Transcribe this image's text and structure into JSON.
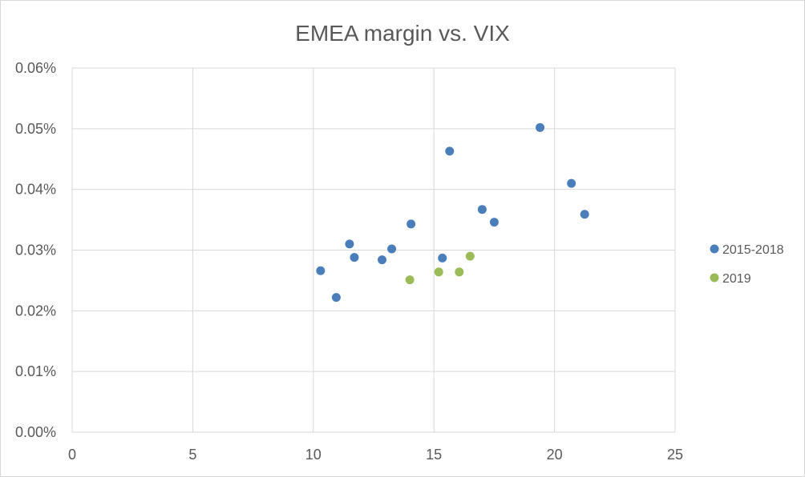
{
  "chart_data": {
    "type": "scatter",
    "title": "EMEA margin vs. VIX",
    "xlabel": "",
    "ylabel": "",
    "xlim": [
      0,
      25
    ],
    "ylim": [
      0,
      0.06
    ],
    "x_ticks": [
      0,
      5,
      10,
      15,
      20,
      25
    ],
    "x_tick_labels": [
      "0",
      "5",
      "10",
      "15",
      "20",
      "25"
    ],
    "y_ticks": [
      0,
      0.01,
      0.02,
      0.03,
      0.04,
      0.05,
      0.06
    ],
    "y_tick_labels": [
      "0.00%",
      "0.01%",
      "0.02%",
      "0.03%",
      "0.04%",
      "0.05%",
      "0.06%"
    ],
    "y_unit": "percent",
    "grid": true,
    "legend_position": "right",
    "series": [
      {
        "name": "2015-2018",
        "color": "#4a7ebb",
        "points": [
          {
            "x": 10.3,
            "y": 0.0266
          },
          {
            "x": 10.95,
            "y": 0.0222
          },
          {
            "x": 11.5,
            "y": 0.031
          },
          {
            "x": 11.7,
            "y": 0.0288
          },
          {
            "x": 12.85,
            "y": 0.0284
          },
          {
            "x": 13.25,
            "y": 0.0302
          },
          {
            "x": 14.05,
            "y": 0.0343
          },
          {
            "x": 15.35,
            "y": 0.0287
          },
          {
            "x": 15.65,
            "y": 0.0463
          },
          {
            "x": 17.0,
            "y": 0.0367
          },
          {
            "x": 17.5,
            "y": 0.0346
          },
          {
            "x": 19.4,
            "y": 0.0502
          },
          {
            "x": 20.7,
            "y": 0.041
          },
          {
            "x": 21.25,
            "y": 0.0359
          }
        ]
      },
      {
        "name": "2019",
        "color": "#9bbb59",
        "points": [
          {
            "x": 14.0,
            "y": 0.0251
          },
          {
            "x": 15.2,
            "y": 0.0264
          },
          {
            "x": 16.05,
            "y": 0.0264
          },
          {
            "x": 16.5,
            "y": 0.029
          }
        ]
      }
    ]
  }
}
